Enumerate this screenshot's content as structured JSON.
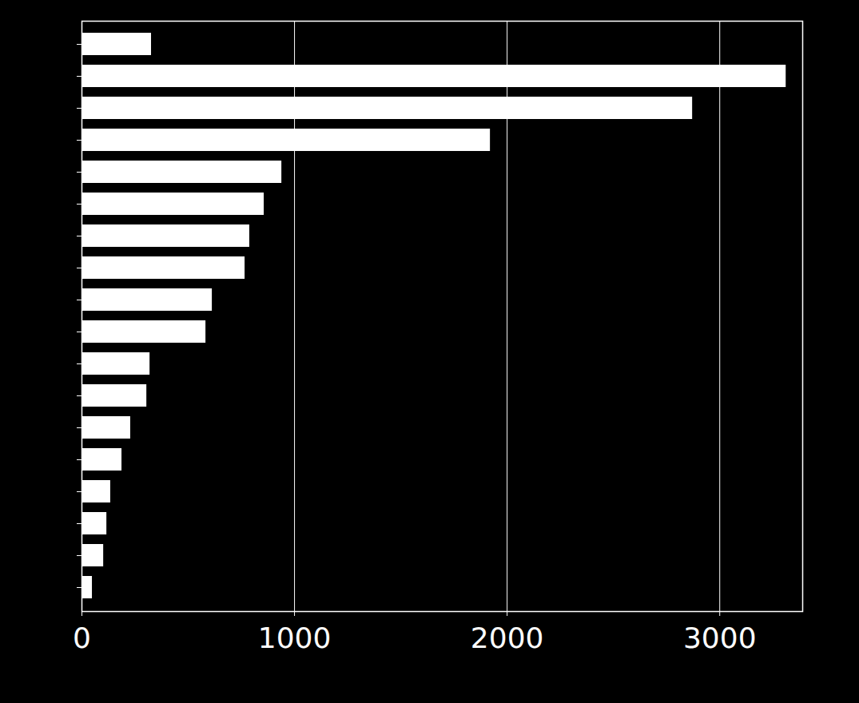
{
  "chart_data": {
    "type": "bar",
    "orientation": "horizontal",
    "categories": [
      null,
      null,
      null,
      null,
      null,
      null,
      null,
      null,
      null,
      null,
      null,
      null,
      null,
      null,
      null,
      null,
      null,
      null
    ],
    "values": [
      327,
      3312,
      2872,
      1921,
      940,
      857,
      789,
      767,
      613,
      583,
      320,
      305,
      229,
      188,
      135,
      117,
      102,
      49
    ],
    "color": "#ffffff",
    "xlim": [
      0,
      3390
    ],
    "xticks": [
      0,
      1000,
      2000,
      3000
    ],
    "grid": true,
    "tick_labels": "x"
  }
}
